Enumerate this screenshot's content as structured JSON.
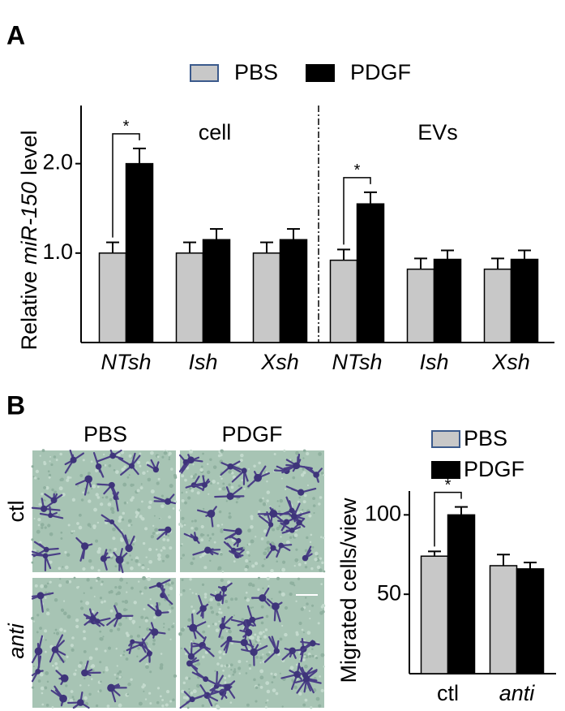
{
  "panels": [
    "A",
    "B"
  ],
  "images": {
    "columns": [
      "PBS",
      "PDGF"
    ],
    "rows": [
      "ctl",
      "anti"
    ]
  },
  "chart_data": [
    {
      "type": "bar",
      "ylabel": [
        "Relative",
        "miR-150",
        "level"
      ],
      "categories": [
        "NTsh",
        "Ish",
        "Xsh",
        "NTsh",
        "Ish",
        "Xsh"
      ],
      "groups": [
        "cell",
        "EVs"
      ],
      "annotations": [
        "*",
        "*"
      ],
      "series": [
        {
          "name": "PBS",
          "color": "#c8c8c8",
          "values": [
            1.0,
            1.0,
            1.0,
            0.92,
            0.82,
            0.82
          ],
          "errors": [
            0.12,
            0.12,
            0.12,
            0.12,
            0.12,
            0.12
          ]
        },
        {
          "name": "PDGF",
          "color": "#000000",
          "values": [
            2.0,
            1.15,
            1.15,
            1.55,
            0.93,
            0.93
          ],
          "errors": [
            0.17,
            0.12,
            0.12,
            0.13,
            0.1,
            0.1
          ]
        }
      ],
      "ylim": [
        0,
        2.65
      ],
      "yticks": [
        {
          "value": 1,
          "label": "1.0"
        },
        {
          "value": 2,
          "label": "2.0"
        }
      ],
      "grid": false
    },
    {
      "type": "bar",
      "ylabel": [
        "Migrated cells/view"
      ],
      "categories": [
        "ctl",
        "anti"
      ],
      "annotations": [
        "*"
      ],
      "series": [
        {
          "name": "PBS",
          "color": "#c8c8c8",
          "values": [
            74,
            68
          ],
          "errors": [
            3,
            7
          ]
        },
        {
          "name": "PDGF",
          "color": "#000000",
          "values": [
            100,
            66
          ],
          "errors": [
            5,
            4
          ]
        }
      ],
      "ylim": [
        0,
        115
      ],
      "yticks": [
        50,
        100
      ],
      "grid": false
    }
  ]
}
